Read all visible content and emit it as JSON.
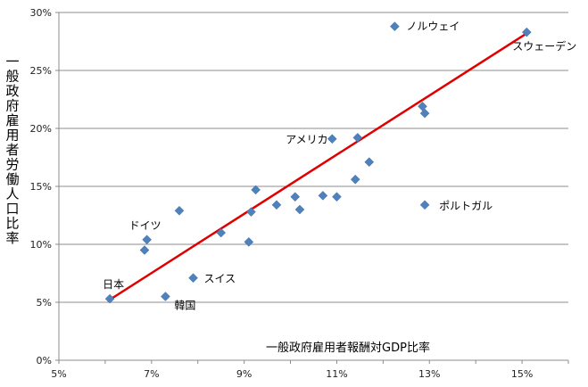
{
  "chart_data": {
    "type": "scatter",
    "title": "",
    "xlabel": "一般政府雇用者報酬対GDP比率",
    "ylabel": "一般政府雇用者労働人口比率",
    "xlim": [
      5,
      16
    ],
    "ylim": [
      0,
      30
    ],
    "x_ticks": [
      "5%",
      "7%",
      "9%",
      "11%",
      "13%",
      "15%"
    ],
    "x_tick_values": [
      5,
      7,
      9,
      11,
      13,
      15
    ],
    "y_ticks": [
      "0%",
      "5%",
      "10%",
      "15%",
      "20%",
      "25%",
      "30%"
    ],
    "y_tick_values": [
      0,
      5,
      10,
      15,
      20,
      25,
      30
    ],
    "grid": "horizontal",
    "marker_color": "#4F81BD",
    "trend_color": "#E00000",
    "trendline": {
      "x": [
        6.05,
        15.1
      ],
      "y": [
        5.1,
        28.2
      ]
    },
    "points": [
      {
        "x": 6.1,
        "y": 5.3,
        "label": "日本"
      },
      {
        "x": 6.85,
        "y": 9.5,
        "label": ""
      },
      {
        "x": 6.9,
        "y": 10.4,
        "label": "ドイツ"
      },
      {
        "x": 7.3,
        "y": 5.5,
        "label": "韓国"
      },
      {
        "x": 7.6,
        "y": 12.9,
        "label": ""
      },
      {
        "x": 7.9,
        "y": 7.1,
        "label": "スイス"
      },
      {
        "x": 8.5,
        "y": 11.0,
        "label": ""
      },
      {
        "x": 9.1,
        "y": 10.2,
        "label": ""
      },
      {
        "x": 9.15,
        "y": 12.8,
        "label": ""
      },
      {
        "x": 9.25,
        "y": 14.7,
        "label": ""
      },
      {
        "x": 9.7,
        "y": 13.4,
        "label": ""
      },
      {
        "x": 10.1,
        "y": 14.1,
        "label": ""
      },
      {
        "x": 10.2,
        "y": 13.0,
        "label": ""
      },
      {
        "x": 10.7,
        "y": 14.2,
        "label": ""
      },
      {
        "x": 10.9,
        "y": 19.1,
        "label": "アメリカ"
      },
      {
        "x": 11.0,
        "y": 14.1,
        "label": ""
      },
      {
        "x": 11.4,
        "y": 15.6,
        "label": ""
      },
      {
        "x": 11.45,
        "y": 19.2,
        "label": ""
      },
      {
        "x": 11.7,
        "y": 17.1,
        "label": ""
      },
      {
        "x": 12.25,
        "y": 28.8,
        "label": "ノルウェイ"
      },
      {
        "x": 12.85,
        "y": 21.9,
        "label": ""
      },
      {
        "x": 12.9,
        "y": 21.3,
        "label": ""
      },
      {
        "x": 12.9,
        "y": 13.4,
        "label": "ポルトガル"
      },
      {
        "x": 15.1,
        "y": 28.3,
        "label": "スウェーデン"
      }
    ]
  }
}
